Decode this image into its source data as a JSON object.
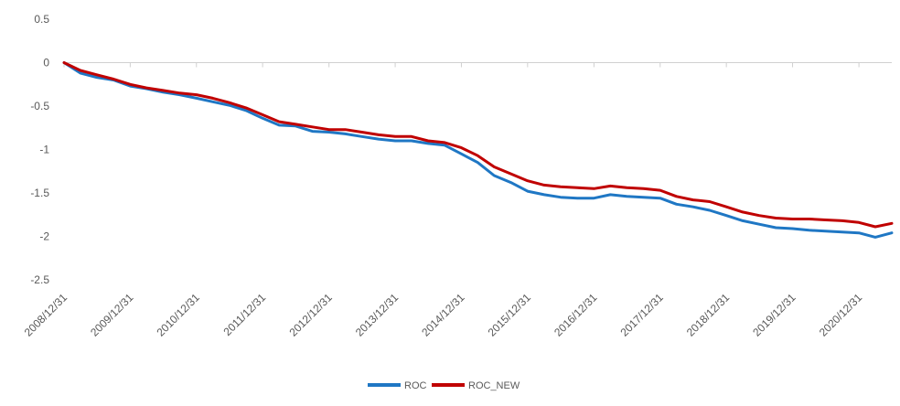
{
  "chart_data": {
    "type": "line",
    "title": "",
    "xlabel": "",
    "ylabel": "",
    "ylim": [
      -2.5,
      0.5
    ],
    "y_ticks": [
      0.5,
      0,
      -0.5,
      -1,
      -1.5,
      -2,
      -2.5
    ],
    "y_tick_labels": [
      "0.5",
      "0",
      "-0.5",
      "-1",
      "-1.5",
      "-2",
      "-2.5"
    ],
    "x_ticks": [
      "2008/12/31",
      "2009/12/31",
      "2010/12/31",
      "2011/12/31",
      "2012/12/31",
      "2013/12/31",
      "2014/12/31",
      "2015/12/31",
      "2016/12/31",
      "2017/12/31",
      "2018/12/31",
      "2019/12/31",
      "2020/12/31"
    ],
    "x_end": "2021/06/30",
    "grid": false,
    "legend_position": "bottom",
    "x": [
      "2008/12/31",
      "2009/03/31",
      "2009/06/30",
      "2009/09/30",
      "2009/12/31",
      "2010/03/31",
      "2010/06/30",
      "2010/09/30",
      "2010/12/31",
      "2011/03/31",
      "2011/06/30",
      "2011/09/30",
      "2011/12/31",
      "2012/03/31",
      "2012/06/30",
      "2012/09/30",
      "2012/12/31",
      "2013/03/31",
      "2013/06/30",
      "2013/09/30",
      "2013/12/31",
      "2014/03/31",
      "2014/06/30",
      "2014/09/30",
      "2014/12/31",
      "2015/03/31",
      "2015/06/30",
      "2015/09/30",
      "2015/12/31",
      "2016/03/31",
      "2016/06/30",
      "2016/09/30",
      "2016/12/31",
      "2017/03/31",
      "2017/06/30",
      "2017/09/30",
      "2017/12/31",
      "2018/03/31",
      "2018/06/30",
      "2018/09/30",
      "2018/12/31",
      "2019/03/31",
      "2019/06/30",
      "2019/09/30",
      "2019/12/31",
      "2020/03/31",
      "2020/06/30",
      "2020/09/30",
      "2020/12/31",
      "2021/03/31",
      "2021/06/30"
    ],
    "series": [
      {
        "name": "ROC",
        "color": "#1F77C4",
        "values": [
          0.0,
          -0.12,
          -0.17,
          -0.2,
          -0.27,
          -0.3,
          -0.34,
          -0.37,
          -0.41,
          -0.45,
          -0.49,
          -0.55,
          -0.64,
          -0.72,
          -0.73,
          -0.79,
          -0.8,
          -0.82,
          -0.85,
          -0.88,
          -0.9,
          -0.9,
          -0.93,
          -0.95,
          -1.05,
          -1.15,
          -1.3,
          -1.38,
          -1.48,
          -1.52,
          -1.55,
          -1.56,
          -1.56,
          -1.52,
          -1.54,
          -1.55,
          -1.56,
          -1.63,
          -1.66,
          -1.7,
          -1.76,
          -1.82,
          -1.86,
          -1.9,
          -1.91,
          -1.93,
          -1.94,
          -1.95,
          -1.96,
          -2.01,
          -1.96
        ]
      },
      {
        "name": "ROC_NEW",
        "color": "#C00000",
        "values": [
          0.0,
          -0.09,
          -0.14,
          -0.19,
          -0.25,
          -0.29,
          -0.32,
          -0.35,
          -0.37,
          -0.41,
          -0.46,
          -0.52,
          -0.6,
          -0.68,
          -0.71,
          -0.74,
          -0.77,
          -0.77,
          -0.8,
          -0.83,
          -0.85,
          -0.85,
          -0.9,
          -0.92,
          -0.98,
          -1.07,
          -1.2,
          -1.28,
          -1.36,
          -1.41,
          -1.43,
          -1.44,
          -1.45,
          -1.42,
          -1.44,
          -1.45,
          -1.47,
          -1.54,
          -1.58,
          -1.6,
          -1.66,
          -1.72,
          -1.76,
          -1.79,
          -1.8,
          -1.8,
          -1.81,
          -1.82,
          -1.84,
          -1.89,
          -1.85
        ]
      }
    ]
  }
}
